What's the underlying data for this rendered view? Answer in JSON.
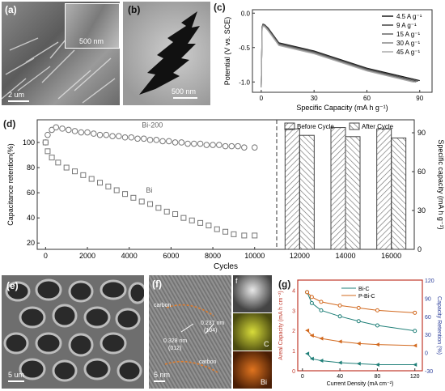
{
  "panels": {
    "a": {
      "label": "(a)",
      "scale_main": "2 um",
      "scale_inset": "500 nm"
    },
    "b": {
      "label": "(b)",
      "scale": "500 nm"
    },
    "c": {
      "label": "(c)"
    },
    "d": {
      "label": "(d)"
    },
    "e": {
      "label": "(e)",
      "scale": "5 um"
    },
    "f": {
      "label": "(f)",
      "scale": "5 nm",
      "annotations": [
        "carbon",
        "0.328 nm",
        "(012)",
        "0.237 nm",
        "(104)",
        "carbon"
      ],
      "map_labels": [
        "f",
        "C",
        "Bi"
      ]
    },
    "g": {
      "label": "(g)"
    }
  },
  "chart_data": [
    {
      "id": "c",
      "type": "line",
      "xlabel": "Specific Capacity (mA h g⁻¹)",
      "ylabel": "Potential (V vs. SCE)",
      "xlim": [
        -5,
        97
      ],
      "ylim": [
        -1.15,
        0.05
      ],
      "xticks": [
        0,
        30,
        60,
        90
      ],
      "yticks": [
        0.0,
        -0.5,
        -1.0
      ],
      "legend_position": "top-right",
      "series": [
        {
          "name": "4.5 A g⁻¹",
          "color": "#1a1a1a",
          "x": [
            0,
            0.5,
            1,
            2,
            4,
            10,
            30,
            60,
            90
          ],
          "y": [
            -1.08,
            -0.2,
            -0.16,
            -0.17,
            -0.22,
            -0.43,
            -0.55,
            -0.8,
            -0.98
          ]
        },
        {
          "name": "9 A g⁻¹",
          "color": "#444444",
          "x": [
            0,
            0.5,
            1,
            2,
            4,
            10,
            30,
            60,
            89
          ],
          "y": [
            -1.08,
            -0.2,
            -0.16,
            -0.17,
            -0.23,
            -0.44,
            -0.56,
            -0.81,
            -0.99
          ]
        },
        {
          "name": "15 A g⁻¹",
          "color": "#666666",
          "x": [
            0,
            0.5,
            1,
            2,
            4,
            10,
            30,
            60,
            88
          ],
          "y": [
            -1.08,
            -0.21,
            -0.17,
            -0.18,
            -0.24,
            -0.45,
            -0.57,
            -0.82,
            -1.0
          ]
        },
        {
          "name": "30 A g⁻¹",
          "color": "#888888",
          "x": [
            0,
            0.5,
            1,
            2,
            4,
            10,
            30,
            60,
            87
          ],
          "y": [
            -1.08,
            -0.22,
            -0.18,
            -0.19,
            -0.25,
            -0.46,
            -0.58,
            -0.83,
            -1.0
          ]
        },
        {
          "name": "45 A g⁻¹",
          "color": "#aaaaaa",
          "x": [
            0,
            0.5,
            1,
            2,
            4,
            10,
            30,
            60,
            86
          ],
          "y": [
            -1.08,
            -0.23,
            -0.19,
            -0.2,
            -0.26,
            -0.47,
            -0.59,
            -0.84,
            -1.0
          ]
        }
      ]
    },
    {
      "id": "d-left",
      "type": "scatter",
      "xlabel": "Cycles",
      "ylabel": "Capacitance retention(%)",
      "xlim": [
        -400,
        10900
      ],
      "ylim": [
        15,
        118
      ],
      "xticks": [
        0,
        2000,
        4000,
        6000,
        8000,
        10000
      ],
      "yticks": [
        20,
        40,
        60,
        80,
        100
      ],
      "series": [
        {
          "name": "Bi-200",
          "marker": "circle",
          "x": [
            0,
            100,
            300,
            500,
            800,
            1100,
            1400,
            1700,
            2000,
            2300,
            2600,
            2900,
            3200,
            3500,
            3800,
            4100,
            4400,
            4700,
            5000,
            5300,
            5600,
            5900,
            6200,
            6500,
            6800,
            7100,
            7400,
            7700,
            8000,
            8300,
            8600,
            8900,
            9200,
            9500,
            10000
          ],
          "y": [
            100,
            106,
            110,
            112,
            111,
            110,
            109,
            108,
            108,
            107,
            106,
            106,
            105,
            105,
            104,
            104,
            103,
            103,
            102,
            102,
            101,
            101,
            100,
            100,
            99,
            99,
            99,
            98,
            98,
            98,
            97,
            97,
            97,
            96,
            96
          ]
        },
        {
          "name": "Bi",
          "marker": "square",
          "x": [
            0,
            100,
            300,
            600,
            1000,
            1400,
            1800,
            2200,
            2600,
            3000,
            3400,
            3800,
            4200,
            4600,
            5000,
            5400,
            5800,
            6200,
            6600,
            7000,
            7400,
            7800,
            8200,
            8600,
            9000,
            9500,
            10000
          ],
          "y": [
            100,
            93,
            88,
            84,
            80,
            77,
            74,
            71,
            68,
            65,
            62,
            59,
            56,
            53,
            51,
            48,
            45,
            43,
            40,
            38,
            36,
            34,
            31,
            29,
            27,
            26,
            26
          ]
        }
      ]
    },
    {
      "id": "d-right",
      "type": "bar",
      "categories": [
        "12000",
        "14000",
        "16000"
      ],
      "ylabel": "Specific capacity (mA h g⁻¹)",
      "ylim": [
        0,
        100
      ],
      "yticks": [
        0,
        30,
        60,
        90
      ],
      "legend_position": "top",
      "series": [
        {
          "name": "Before Cycle",
          "values": [
            93,
            94,
            93
          ]
        },
        {
          "name": "After Cycle",
          "values": [
            88,
            87,
            86
          ]
        }
      ]
    },
    {
      "id": "g",
      "type": "line",
      "xlabel": "Current Density (mA cm⁻²)",
      "ylabel": "Areal Capacity (mA h cm⁻²)",
      "ylabel_right": "Capacity Retention (%)",
      "xlim": [
        -5,
        128
      ],
      "ylim": [
        0,
        4.5
      ],
      "ylim_right": [
        -30,
        120
      ],
      "xticks": [
        0,
        40,
        80,
        120
      ],
      "yticks": [
        0,
        1,
        2,
        3,
        4
      ],
      "yticks_right": [
        -30,
        0,
        30,
        60,
        90,
        120
      ],
      "legend_position": "top-center",
      "series": [
        {
          "name": "Bi-C",
          "color": "#1f7f78",
          "axis": "left",
          "x": [
            5,
            10,
            20,
            40,
            60,
            80,
            120
          ],
          "y": [
            0.85,
            0.6,
            0.5,
            0.4,
            0.35,
            0.3,
            0.3
          ]
        },
        {
          "name": "P-Bi-C",
          "color": "#d2691e",
          "axis": "left",
          "x": [
            5,
            10,
            20,
            40,
            60,
            80,
            120
          ],
          "y": [
            2.0,
            1.75,
            1.6,
            1.45,
            1.35,
            1.3,
            1.25
          ]
        },
        {
          "name": "Bi-C retention",
          "color": "#1f7f78",
          "axis": "right",
          "x": [
            5,
            10,
            20,
            40,
            60,
            80,
            120
          ],
          "y": [
            100,
            82,
            70,
            60,
            52,
            45,
            36
          ]
        },
        {
          "name": "P-Bi-C retention",
          "color": "#d2691e",
          "axis": "right",
          "x": [
            5,
            10,
            20,
            40,
            60,
            80,
            120
          ],
          "y": [
            100,
            92,
            84,
            78,
            74,
            70,
            66
          ]
        }
      ]
    }
  ]
}
